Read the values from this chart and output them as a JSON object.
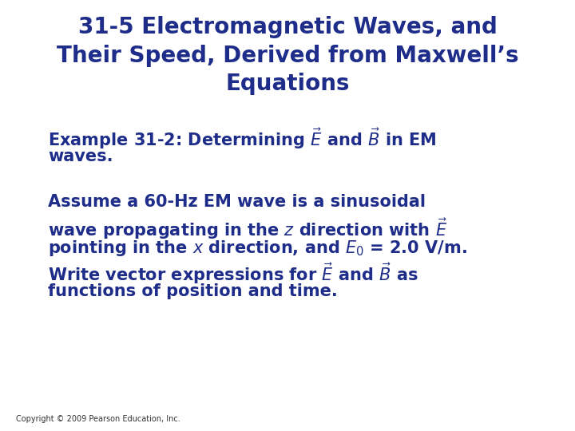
{
  "title_line1": "31-5 Electromagnetic Waves, and",
  "title_line2": "Their Speed, Derived from Maxwell’s",
  "title_line3": "Equations",
  "title_color": "#1f2d8a",
  "title_fontsize": 20,
  "body_color": "#1f2d8a",
  "body_fontsize": 15,
  "copyright_text": "Copyright © 2009 Pearson Education, Inc.",
  "copyright_fontsize": 7,
  "background_color": "#ffffff",
  "example_line1": "Example 31-2: Determining $\\vec{E}$ and $\\vec{B}$ in EM",
  "example_line2": "waves.",
  "body_lines": [
    "Assume a 60-Hz EM wave is a sinusoidal",
    "wave propagating in the $z$ direction with $\\vec{E}$",
    "pointing in the $x$ direction, and $E_0$ = 2.0 V/m.",
    "Write vector expressions for $\\vec{E}$ and $\\vec{B}$ as",
    "functions of position and time."
  ]
}
